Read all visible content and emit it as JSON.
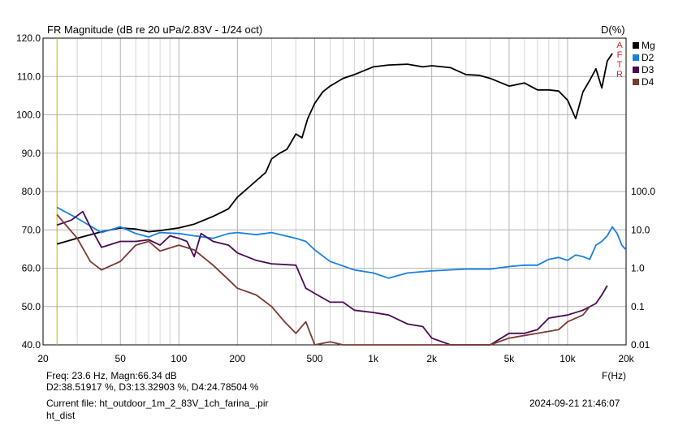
{
  "title": "FR Magnitude (dB re 20 uPa/2.83V - 1/24 oct)",
  "right_title": "D(%)",
  "x_axis_label": "F(Hz)",
  "readout": {
    "line1": "Freq: 23.6 Hz, Magn:66.34 dB",
    "line2": "D2:38.51917 %, D3:13.32903 %, D4:24.78504 %"
  },
  "current_file": "Current file: ht_outdoor_1m_2_83V_1ch_farina_.pir",
  "current_file_cont": "ht_dist",
  "timestamp": "2024-09-21  21:46:07",
  "side_buttons": [
    "A",
    "F",
    "T",
    "R"
  ],
  "colors": {
    "Mg": "#000000",
    "D2": "#1a80e0",
    "D3": "#4a0a55",
    "D4": "#7a3a30",
    "cursor": "#c8b400",
    "button": "#e02020"
  },
  "chart_data": {
    "type": "line",
    "x_scale": "log",
    "xlim": [
      20,
      20000
    ],
    "ylim_left": [
      40,
      120
    ],
    "ylim_right": [
      0.01,
      100
    ],
    "right_scale": "log",
    "x_ticks": [
      20,
      50,
      100,
      200,
      500,
      1000,
      2000,
      5000,
      10000,
      20000
    ],
    "x_tick_labels": [
      "20",
      "50",
      "100",
      "200",
      "500",
      "1k",
      "2k",
      "5k",
      "10k",
      "20k"
    ],
    "y_left_ticks": [
      40,
      50,
      60,
      70,
      80,
      90,
      100,
      110,
      120
    ],
    "y_left_tick_labels": [
      "40.0",
      "50.0",
      "60.0",
      "70.0",
      "80.0",
      "90.0",
      "100.0",
      "110.0",
      "120.0"
    ],
    "y_right_ticks": [
      0.01,
      0.1,
      1,
      10,
      100
    ],
    "y_right_tick_labels": [
      "0.01",
      "0.1",
      "1.0",
      "10.0",
      "100.0"
    ],
    "grid": true,
    "legend_position": "top-right",
    "cursor_x": 23.6,
    "series": [
      {
        "name": "Mg",
        "axis": "left",
        "x": [
          23.6,
          30,
          40,
          50,
          60,
          70,
          80,
          100,
          120,
          150,
          180,
          200,
          240,
          280,
          300,
          330,
          360,
          400,
          430,
          460,
          500,
          550,
          600,
          700,
          800,
          1000,
          1200,
          1500,
          1800,
          2000,
          2500,
          3000,
          3500,
          4000,
          5000,
          6000,
          7000,
          8000,
          9000,
          10000,
          11000,
          12000,
          13000,
          14000,
          15000,
          16000,
          17000
        ],
        "y": [
          66.3,
          67.8,
          69.5,
          70.5,
          70.2,
          69.5,
          69.8,
          70.5,
          71.5,
          73.5,
          75.5,
          78.5,
          82,
          85,
          88.5,
          90,
          91,
          95,
          94,
          99,
          103,
          106,
          107.5,
          109.5,
          110.5,
          112.5,
          113,
          113.2,
          112.5,
          112.8,
          112.3,
          110.5,
          110.3,
          109.5,
          107.5,
          108.3,
          106.5,
          106.5,
          106.2,
          103.8,
          99,
          106,
          109,
          112,
          107,
          114,
          116
        ]
      },
      {
        "name": "D2",
        "axis": "right",
        "x": [
          23.6,
          30,
          40,
          50,
          60,
          70,
          80,
          100,
          120,
          150,
          180,
          200,
          250,
          300,
          400,
          450,
          500,
          600,
          800,
          1000,
          1200,
          1500,
          2000,
          3000,
          4000,
          5000,
          6000,
          7000,
          8000,
          9000,
          10000,
          11000,
          12000,
          13000,
          14000,
          15000,
          16000,
          17000,
          18000,
          19000,
          20000
        ],
        "y": [
          38.5,
          20,
          8.5,
          12,
          8,
          6.5,
          8.5,
          8,
          7,
          6,
          8,
          8.5,
          7.5,
          8.5,
          6,
          5,
          3,
          1.5,
          0.9,
          0.75,
          0.55,
          0.75,
          0.85,
          0.95,
          0.95,
          1.1,
          1.2,
          1.2,
          1.7,
          1.9,
          1.6,
          2.2,
          2,
          1.7,
          4,
          5,
          7,
          12,
          8,
          4,
          3
        ]
      },
      {
        "name": "D3",
        "axis": "right",
        "x": [
          23.6,
          28,
          32,
          35,
          40,
          50,
          60,
          70,
          80,
          90,
          100,
          110,
          120,
          130,
          150,
          180,
          200,
          250,
          300,
          400,
          450,
          500,
          600,
          700,
          800,
          1000,
          1200,
          1500,
          1800,
          2000,
          2500,
          3000,
          4000,
          5000,
          6000,
          7000,
          8000,
          10000,
          12000,
          14000,
          15000,
          16000
        ],
        "y": [
          13.3,
          18,
          30,
          12,
          3.5,
          5,
          5,
          5.5,
          4,
          7,
          6,
          5,
          2,
          8,
          5,
          4,
          2.5,
          1.6,
          1.3,
          1.2,
          0.3,
          0.22,
          0.13,
          0.13,
          0.08,
          0.07,
          0.06,
          0.035,
          0.03,
          0.015,
          0.01,
          0.01,
          0.01,
          0.02,
          0.02,
          0.025,
          0.05,
          0.06,
          0.08,
          0.12,
          0.2,
          0.35
        ]
      },
      {
        "name": "D4",
        "axis": "right",
        "x": [
          23.6,
          30,
          35,
          40,
          50,
          60,
          70,
          80,
          100,
          120,
          150,
          180,
          200,
          250,
          300,
          350,
          400,
          450,
          500,
          600,
          700,
          800,
          1000,
          1500,
          2000,
          3000,
          4000,
          5000,
          7000,
          9000,
          10000,
          12000,
          13000
        ],
        "y": [
          24.8,
          6,
          1.5,
          0.9,
          1.5,
          4,
          5,
          2.8,
          4,
          3,
          1.2,
          0.5,
          0.3,
          0.2,
          0.1,
          0.04,
          0.02,
          0.04,
          0.01,
          0.012,
          0.01,
          0.01,
          0.01,
          0.01,
          0.01,
          0.01,
          0.01,
          0.015,
          0.02,
          0.025,
          0.04,
          0.06,
          0.1
        ]
      }
    ]
  }
}
